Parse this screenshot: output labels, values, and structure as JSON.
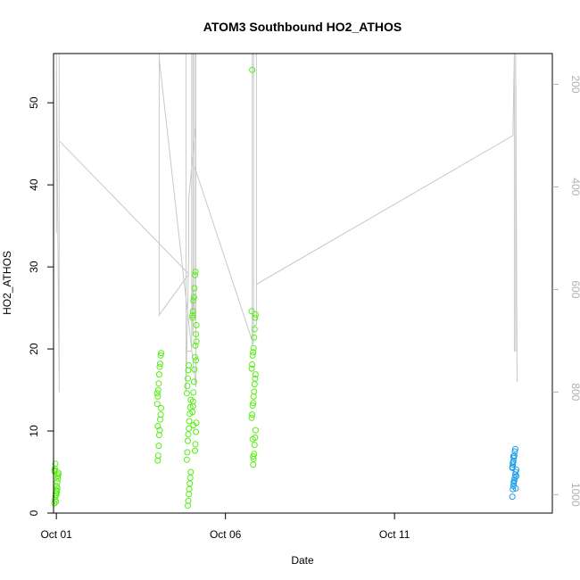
{
  "chart_data": {
    "type": "scatter",
    "title": "ATOM3 Southbound HO2_ATHOS",
    "xlabel": "Date",
    "ylabel": "HO2_ATHOS",
    "xlim": [
      "2017-09-30T22:00",
      "2017-10-15T16:00"
    ],
    "ylim": [
      0,
      56
    ],
    "x_ticks": [
      {
        "label": "Oct 01",
        "value": "2017-10-01T00:00"
      },
      {
        "label": "Oct 06",
        "value": "2017-10-06T00:00"
      },
      {
        "label": "Oct 11",
        "value": "2017-10-11T00:00"
      }
    ],
    "y_ticks": [
      0,
      10,
      20,
      30,
      40,
      50
    ],
    "y2_ticks": [
      200,
      400,
      600,
      800,
      1000
    ],
    "y2lim": [
      1036,
      140
    ],
    "y2_reversed": true,
    "grid": false,
    "colors": {
      "green": "#55ee11",
      "blue": "#1c9ee8",
      "line": "#c8c8c8"
    },
    "series": [
      {
        "color": "green",
        "points": [
          [
            "2017-10-01T00:00",
            1.2
          ],
          [
            "2017-10-01T00:00",
            1.6
          ],
          [
            "2017-10-01T00:00",
            2.0
          ],
          [
            "2017-10-01T00:00",
            2.4
          ],
          [
            "2017-10-01T00:00",
            2.8
          ],
          [
            "2017-10-01T00:00",
            3.3
          ],
          [
            "2017-10-01T00:00",
            3.8
          ],
          [
            "2017-10-01T00:00",
            4.2
          ],
          [
            "2017-10-01T00:00",
            4.7
          ],
          [
            "2017-10-01T00:00",
            5.1
          ],
          [
            "2017-10-01T00:00",
            5.4
          ],
          [
            "2017-10-01T00:00",
            6.0
          ],
          [
            "2017-10-01T00:00",
            1.4
          ],
          [
            "2017-10-01T00:00",
            2.2
          ],
          [
            "2017-10-01T00:00",
            2.6
          ],
          [
            "2017-10-01T00:00",
            3.0
          ],
          [
            "2017-10-01T00:00",
            4.5
          ],
          [
            "2017-10-01T00:00",
            4.9
          ],
          [
            "2017-10-01T00:00",
            5.2
          ],
          [
            "2017-10-04T01:00",
            6.4
          ],
          [
            "2017-10-04T01:00",
            7.0
          ],
          [
            "2017-10-04T01:00",
            8.2
          ],
          [
            "2017-10-04T01:00",
            9.5
          ],
          [
            "2017-10-04T01:00",
            10.1
          ],
          [
            "2017-10-04T01:00",
            11.4
          ],
          [
            "2017-10-04T01:00",
            12.0
          ],
          [
            "2017-10-04T01:00",
            12.8
          ],
          [
            "2017-10-04T01:00",
            13.3
          ],
          [
            "2017-10-04T01:00",
            14.2
          ],
          [
            "2017-10-04T01:00",
            15.0
          ],
          [
            "2017-10-04T01:00",
            15.8
          ],
          [
            "2017-10-04T01:00",
            16.9
          ],
          [
            "2017-10-04T01:00",
            17.8
          ],
          [
            "2017-10-04T01:00",
            18.2
          ],
          [
            "2017-10-04T01:00",
            19.2
          ],
          [
            "2017-10-04T01:00",
            19.5
          ],
          [
            "2017-10-04T01:00",
            14.6
          ],
          [
            "2017-10-04T01:00",
            10.6
          ],
          [
            "2017-10-04T22:00",
            0.9
          ],
          [
            "2017-10-04T22:00",
            1.5
          ],
          [
            "2017-10-04T22:00",
            2.3
          ],
          [
            "2017-10-04T22:00",
            2.9
          ],
          [
            "2017-10-04T22:00",
            3.6
          ],
          [
            "2017-10-04T22:00",
            4.3
          ],
          [
            "2017-10-04T22:00",
            5.0
          ],
          [
            "2017-10-04T22:00",
            6.5
          ],
          [
            "2017-10-04T22:00",
            7.4
          ],
          [
            "2017-10-04T22:00",
            8.8
          ],
          [
            "2017-10-04T22:00",
            9.6
          ],
          [
            "2017-10-04T22:00",
            10.3
          ],
          [
            "2017-10-04T22:00",
            11.2
          ],
          [
            "2017-10-04T22:00",
            12.1
          ],
          [
            "2017-10-04T22:00",
            12.9
          ],
          [
            "2017-10-04T22:00",
            13.8
          ],
          [
            "2017-10-04T22:00",
            14.6
          ],
          [
            "2017-10-04T22:00",
            15.5
          ],
          [
            "2017-10-04T22:00",
            16.4
          ],
          [
            "2017-10-04T22:00",
            17.4
          ],
          [
            "2017-10-04T22:00",
            18.0
          ],
          [
            "2017-10-05T02:00",
            7.6
          ],
          [
            "2017-10-05T02:00",
            8.4
          ],
          [
            "2017-10-05T02:00",
            9.9
          ],
          [
            "2017-10-05T02:00",
            11.0
          ],
          [
            "2017-10-05T02:00",
            12.3
          ],
          [
            "2017-10-05T02:00",
            13.0
          ],
          [
            "2017-10-05T02:00",
            14.7
          ],
          [
            "2017-10-05T02:00",
            16.0
          ],
          [
            "2017-10-05T02:00",
            17.5
          ],
          [
            "2017-10-05T02:00",
            19.0
          ],
          [
            "2017-10-05T02:00",
            20.4
          ],
          [
            "2017-10-05T02:00",
            21.8
          ],
          [
            "2017-10-05T02:00",
            22.9
          ],
          [
            "2017-10-05T02:00",
            23.8
          ],
          [
            "2017-10-05T02:00",
            24.6
          ],
          [
            "2017-10-05T02:00",
            25.9
          ],
          [
            "2017-10-05T02:00",
            26.3
          ],
          [
            "2017-10-05T02:00",
            27.4
          ],
          [
            "2017-10-05T02:00",
            29.0
          ],
          [
            "2017-10-05T02:00",
            29.4
          ],
          [
            "2017-10-05T02:00",
            18.6
          ],
          [
            "2017-10-05T02:00",
            20.9
          ],
          [
            "2017-10-05T02:00",
            24.1
          ],
          [
            "2017-10-05T02:00",
            13.6
          ],
          [
            "2017-10-05T02:00",
            10.7
          ],
          [
            "2017-10-06T20:00",
            5.9
          ],
          [
            "2017-10-06T20:00",
            6.6
          ],
          [
            "2017-10-06T20:00",
            7.2
          ],
          [
            "2017-10-06T20:00",
            8.3
          ],
          [
            "2017-10-06T20:00",
            9.2
          ],
          [
            "2017-10-06T20:00",
            10.1
          ],
          [
            "2017-10-06T20:00",
            11.6
          ],
          [
            "2017-10-06T20:00",
            12.0
          ],
          [
            "2017-10-06T20:00",
            13.1
          ],
          [
            "2017-10-06T20:00",
            13.4
          ],
          [
            "2017-10-06T20:00",
            14.2
          ],
          [
            "2017-10-06T20:00",
            14.8
          ],
          [
            "2017-10-06T20:00",
            15.7
          ],
          [
            "2017-10-06T20:00",
            16.4
          ],
          [
            "2017-10-06T20:00",
            16.9
          ],
          [
            "2017-10-06T20:00",
            17.6
          ],
          [
            "2017-10-06T20:00",
            18.1
          ],
          [
            "2017-10-06T20:00",
            19.2
          ],
          [
            "2017-10-06T20:00",
            19.6
          ],
          [
            "2017-10-06T20:00",
            20.1
          ],
          [
            "2017-10-06T20:00",
            21.4
          ],
          [
            "2017-10-06T20:00",
            22.4
          ],
          [
            "2017-10-06T20:00",
            23.8
          ],
          [
            "2017-10-06T20:00",
            24.2
          ],
          [
            "2017-10-06T20:00",
            24.6
          ],
          [
            "2017-10-06T20:00",
            54.0
          ],
          [
            "2017-10-06T20:00",
            9.0
          ],
          [
            "2017-10-06T20:00",
            6.9
          ]
        ]
      },
      {
        "color": "blue",
        "points": [
          [
            "2017-10-14T13:00",
            2.0
          ],
          [
            "2017-10-14T13:00",
            2.9
          ],
          [
            "2017-10-14T13:00",
            3.3
          ],
          [
            "2017-10-14T13:00",
            3.6
          ],
          [
            "2017-10-14T13:00",
            4.0
          ],
          [
            "2017-10-14T13:00",
            4.3
          ],
          [
            "2017-10-14T13:00",
            4.7
          ],
          [
            "2017-10-14T13:00",
            5.0
          ],
          [
            "2017-10-14T13:00",
            5.3
          ],
          [
            "2017-10-14T13:00",
            5.6
          ],
          [
            "2017-10-14T13:00",
            5.9
          ],
          [
            "2017-10-14T13:00",
            6.3
          ],
          [
            "2017-10-14T13:00",
            6.7
          ],
          [
            "2017-10-14T13:00",
            7.0
          ],
          [
            "2017-10-14T13:00",
            7.5
          ],
          [
            "2017-10-14T13:00",
            7.8
          ],
          [
            "2017-10-14T13:00",
            3.0
          ],
          [
            "2017-10-14T13:00",
            4.5
          ],
          [
            "2017-10-14T13:00",
            5.5
          ],
          [
            "2017-10-14T13:00",
            6.1
          ],
          [
            "2017-10-14T13:00",
            6.9
          ],
          [
            "2017-10-14T13:00",
            3.8
          ]
        ]
      }
    ],
    "line_series": {
      "color": "line",
      "axis": "right",
      "points": [
        [
          "2017-10-01T00:00",
          490
        ],
        [
          "2017-10-01T00:00",
          140
        ],
        [
          "2017-10-01T00:00",
          140
        ],
        [
          "2017-10-01T02:00",
          800
        ],
        [
          "2017-10-01T02:00",
          800
        ],
        [
          "2017-10-01T02:00",
          140
        ],
        [
          "2017-10-01T02:00",
          310
        ],
        [
          "2017-10-04T22:00",
          570
        ],
        [
          "2017-10-04T01:00",
          650
        ],
        [
          "2017-10-04T01:00",
          140
        ],
        [
          "2017-10-04T01:00",
          140
        ],
        [
          "2017-10-04T01:00",
          150
        ],
        [
          "2017-10-05T03:00",
          790
        ],
        [
          "2017-10-05T03:00",
          140
        ],
        [
          "2017-10-05T03:00",
          140
        ],
        [
          "2017-10-05T03:00",
          280
        ],
        [
          "2017-10-04T22:00",
          420
        ],
        [
          "2017-10-04T22:00",
          520
        ],
        [
          "2017-10-04T20:00",
          800
        ],
        [
          "2017-10-04T20:00",
          140
        ],
        [
          "2017-10-04T20:00",
          140
        ],
        [
          "2017-10-04T20:00",
          720
        ],
        [
          "2017-10-05T00:00",
          720
        ],
        [
          "2017-10-05T00:00",
          140
        ],
        [
          "2017-10-05T00:00",
          140
        ],
        [
          "2017-10-05T00:00",
          580
        ],
        [
          "2017-10-05T01:00",
          690
        ],
        [
          "2017-10-05T01:00",
          140
        ],
        [
          "2017-10-05T01:00",
          140
        ],
        [
          "2017-10-05T01:00",
          600
        ],
        [
          "2017-10-05T02:00",
          650
        ],
        [
          "2017-10-05T02:00",
          140
        ],
        [
          "2017-10-05T02:00",
          140
        ],
        [
          "2017-10-05T02:00",
          360
        ],
        [
          "2017-10-06T19:00",
          700
        ],
        [
          "2017-10-06T19:00",
          140
        ],
        [
          "2017-10-06T19:00",
          140
        ],
        [
          "2017-10-06T19:00",
          710
        ],
        [
          "2017-10-06T20:00",
          700
        ],
        [
          "2017-10-06T20:00",
          140
        ],
        [
          "2017-10-06T20:00",
          140
        ],
        [
          "2017-10-06T20:00",
          670
        ],
        [
          "2017-10-06T22:00",
          670
        ],
        [
          "2017-10-06T22:00",
          140
        ],
        [
          "2017-10-06T22:00",
          140
        ],
        [
          "2017-10-06T22:00",
          590
        ],
        [
          "2017-10-14T12:00",
          300
        ],
        [
          "2017-10-14T13:00",
          140
        ],
        [
          "2017-10-14T13:00",
          140
        ],
        [
          "2017-10-14T13:00",
          720
        ],
        [
          "2017-10-14T14:00",
          720
        ],
        [
          "2017-10-14T14:00",
          140
        ],
        [
          "2017-10-14T14:00",
          140
        ],
        [
          "2017-10-14T15:00",
          780
        ]
      ]
    }
  }
}
